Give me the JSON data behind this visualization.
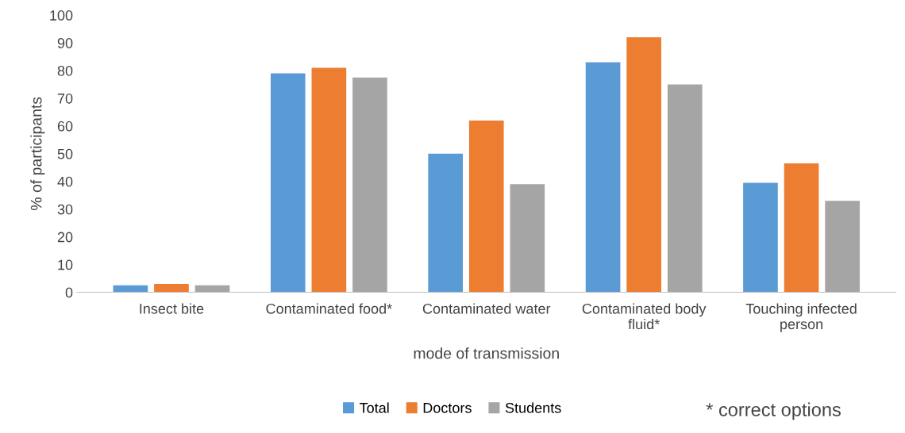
{
  "chart_data": {
    "type": "bar",
    "categories": [
      "Insect bite",
      "Contaminated food*",
      "Contaminated water",
      "Contaminated body fluid*",
      "Touching infected person"
    ],
    "series": [
      {
        "name": "Total",
        "color": "#5b9bd5",
        "values": [
          2.5,
          79,
          50,
          83,
          39.5
        ]
      },
      {
        "name": "Doctors",
        "color": "#ed7d31",
        "values": [
          3,
          81,
          62,
          92,
          46.5
        ]
      },
      {
        "name": "Students",
        "color": "#a5a5a5",
        "values": [
          2.5,
          77.5,
          39,
          75,
          33
        ]
      }
    ],
    "xlabel": "mode of transmission",
    "ylabel": "% of participants",
    "ylim": [
      0,
      100
    ],
    "yticks": [
      0,
      10,
      20,
      30,
      40,
      50,
      60,
      70,
      80,
      90,
      100
    ],
    "grid": false,
    "legend": "bottom",
    "annotations": [
      "* correct options"
    ]
  }
}
